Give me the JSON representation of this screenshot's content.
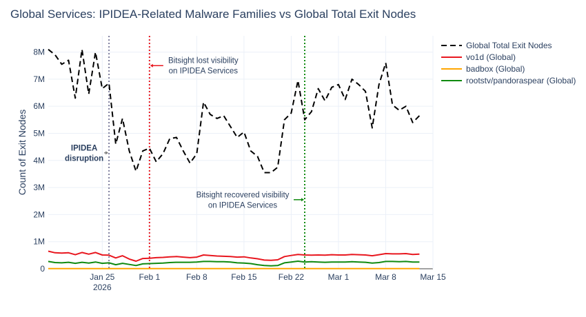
{
  "chart_data": {
    "type": "line",
    "title": "Global Services: IPIDEA-Related Malware Families vs Global Total Exit Nodes",
    "xlabel": "",
    "ylabel": "Count of Exit Nodes",
    "x_start": "2026-01-17",
    "x_step_days": 1,
    "x_ticks": [
      {
        "date": "2026-01-25",
        "label": "Jan 25",
        "sublabel": "2026"
      },
      {
        "date": "2026-02-01",
        "label": "Feb 1"
      },
      {
        "date": "2026-02-08",
        "label": "Feb 8"
      },
      {
        "date": "2026-02-15",
        "label": "Feb 15"
      },
      {
        "date": "2026-02-22",
        "label": "Feb 22"
      },
      {
        "date": "2026-03-01",
        "label": "Mar 1"
      },
      {
        "date": "2026-03-08",
        "label": "Mar 8"
      },
      {
        "date": "2026-03-15",
        "label": "Mar 15"
      }
    ],
    "y_ticks": [
      {
        "value": 0,
        "label": "0"
      },
      {
        "value": 1000000,
        "label": "1M"
      },
      {
        "value": 2000000,
        "label": "2M"
      },
      {
        "value": 3000000,
        "label": "3M"
      },
      {
        "value": 4000000,
        "label": "4M"
      },
      {
        "value": 5000000,
        "label": "5M"
      },
      {
        "value": 6000000,
        "label": "6M"
      },
      {
        "value": 7000000,
        "label": "7M"
      },
      {
        "value": 8000000,
        "label": "8M"
      }
    ],
    "xlim": [
      "2026-01-17",
      "2026-03-15"
    ],
    "ylim": [
      0,
      8600000
    ],
    "grid": true,
    "legend_position": "right",
    "series": [
      {
        "name": "Global Total Exit Nodes",
        "color": "#000000",
        "dash": true,
        "values": [
          8100000,
          7900000,
          7550000,
          7700000,
          6300000,
          8100000,
          6450000,
          8000000,
          6650000,
          6850000,
          4600000,
          5550000,
          4350000,
          3600000,
          4350000,
          4450000,
          3950000,
          4250000,
          4800000,
          4850000,
          4350000,
          3900000,
          4250000,
          6150000,
          5700000,
          5550000,
          5650000,
          5250000,
          4850000,
          5050000,
          4350000,
          4150000,
          3550000,
          3550000,
          3750000,
          5500000,
          5750000,
          6950000,
          5500000,
          5800000,
          6650000,
          6200000,
          6700000,
          6800000,
          6250000,
          7000000,
          6800000,
          6550000,
          5200000,
          6800000,
          7600000,
          6050000,
          5850000,
          6000000,
          5400000,
          5650000
        ]
      },
      {
        "name": "vo1d (Global)",
        "color": "#e8161e",
        "dash": false,
        "values": [
          650000,
          590000,
          580000,
          590000,
          520000,
          600000,
          540000,
          600000,
          510000,
          500000,
          400000,
          480000,
          360000,
          280000,
          380000,
          390000,
          410000,
          420000,
          440000,
          450000,
          430000,
          410000,
          430000,
          510000,
          490000,
          470000,
          460000,
          450000,
          430000,
          440000,
          400000,
          370000,
          320000,
          310000,
          330000,
          450000,
          490000,
          530000,
          510000,
          500000,
          510000,
          500000,
          520000,
          510000,
          510000,
          530000,
          520000,
          510000,
          480000,
          520000,
          560000,
          550000,
          550000,
          560000,
          530000,
          540000
        ]
      },
      {
        "name": "badbox (Global)",
        "color": "#ffa500",
        "dash": false,
        "values": [
          8000,
          8000,
          8000,
          8000,
          8000,
          8000,
          8000,
          8000,
          8000,
          8000,
          8000,
          8000,
          8000,
          8000,
          8000,
          8000,
          8000,
          8000,
          8000,
          8000,
          8000,
          8000,
          8000,
          8000,
          8000,
          8000,
          8000,
          8000,
          8000,
          8000,
          8000,
          8000,
          8000,
          8000,
          8000,
          8000,
          8000,
          8000,
          8000,
          8000,
          8000,
          8000,
          8000,
          8000,
          8000,
          8000,
          8000,
          8000,
          8000,
          8000,
          8000,
          8000,
          8000,
          8000,
          8000,
          8000
        ]
      },
      {
        "name": "rootstv/pandoraspear (Global)",
        "color": "#0f8a0f",
        "dash": false,
        "values": [
          270000,
          230000,
          220000,
          240000,
          200000,
          240000,
          210000,
          250000,
          200000,
          220000,
          150000,
          200000,
          160000,
          120000,
          180000,
          190000,
          200000,
          210000,
          230000,
          240000,
          240000,
          240000,
          250000,
          270000,
          270000,
          260000,
          260000,
          250000,
          220000,
          210000,
          190000,
          150000,
          120000,
          110000,
          120000,
          220000,
          250000,
          280000,
          250000,
          260000,
          250000,
          240000,
          250000,
          250000,
          250000,
          260000,
          250000,
          240000,
          210000,
          230000,
          270000,
          270000,
          260000,
          270000,
          250000,
          250000
        ]
      }
    ],
    "vlines": [
      {
        "date": "2026-01-26",
        "color": "#7f7f9f",
        "style": "dotted"
      },
      {
        "date": "2026-02-01",
        "color": "#e8161e",
        "style": "dotted"
      },
      {
        "date": "2026-02-24",
        "color": "#0f8a0f",
        "style": "dotted"
      }
    ],
    "annotations": [
      {
        "lines": [
          "Bitsight lost visibility",
          "on IPIDEA Services"
        ],
        "date": "2026-02-01",
        "y": 7500000,
        "arrow_color": "#e8161e",
        "bold": false
      },
      {
        "lines": [
          "Bitsight recovered visibility",
          "on IPIDEA Services"
        ],
        "date": "2026-02-24",
        "y": 2550000,
        "arrow_color": "#0f8a0f",
        "bold": false
      },
      {
        "lines": [
          "IPIDEA",
          "disruption"
        ],
        "date": "2026-01-26",
        "y": 4280000,
        "arrow_color": "#7f7f7f",
        "bold": true
      }
    ]
  }
}
